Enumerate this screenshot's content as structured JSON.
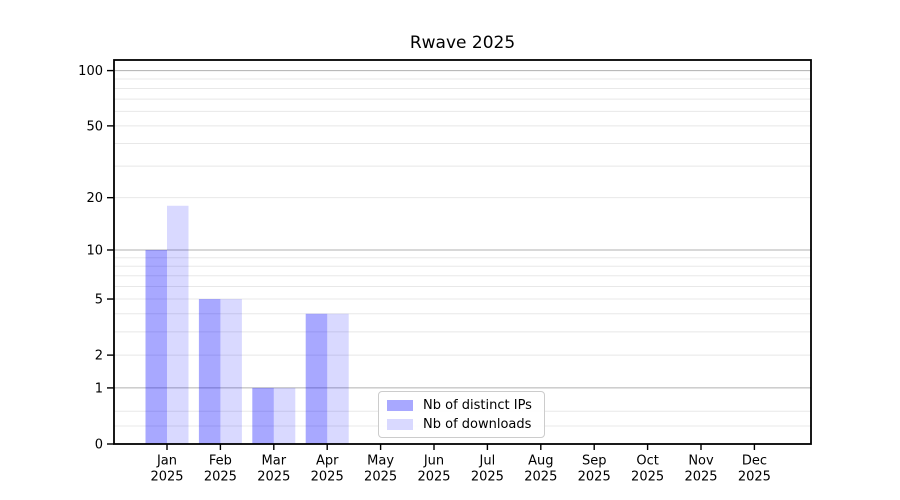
{
  "chart_data": {
    "type": "bar",
    "title": "Rwave 2025",
    "scale": "log1p (symlog-like: y position proportional to log10(1+value))",
    "categories": [
      "Jan 2025",
      "Feb 2025",
      "Mar 2025",
      "Apr 2025",
      "May 2025",
      "Jun 2025",
      "Jul 2025",
      "Aug 2025",
      "Sep 2025",
      "Oct 2025",
      "Nov 2025",
      "Dec 2025"
    ],
    "x_tick_months": [
      "Jan",
      "Feb",
      "Mar",
      "Apr",
      "May",
      "Jun",
      "Jul",
      "Aug",
      "Sep",
      "Oct",
      "Nov",
      "Dec"
    ],
    "x_tick_year": "2025",
    "series": [
      {
        "name": "Nb of distinct IPs",
        "values": [
          10,
          5,
          1,
          4,
          0,
          0,
          0,
          0,
          0,
          0,
          0,
          0
        ],
        "fill": "#0000ff",
        "fill_opacity": 0.34,
        "legend_color": "#a8a8ff"
      },
      {
        "name": "Nb of downloads",
        "values": [
          18,
          5,
          1,
          4,
          0,
          0,
          0,
          0,
          0,
          0,
          0,
          0
        ],
        "fill": "#0000ff",
        "fill_opacity": 0.15,
        "legend_color": "#d9d9ff"
      }
    ],
    "yticks": [
      0,
      1,
      2,
      5,
      10,
      20,
      50,
      100
    ],
    "ylim": [
      0,
      114
    ],
    "xlabel": "",
    "ylabel": "",
    "grid": {
      "on": true,
      "major_values": [
        1,
        10,
        100
      ],
      "minor_values": [
        0.25,
        0.5,
        2,
        3,
        4,
        5,
        6,
        7,
        8,
        9,
        20,
        30,
        40,
        50,
        60,
        70,
        80,
        90
      ],
      "major_color": "#b0b0b0",
      "minor_color": "#e8e8e8"
    },
    "legend_position": "inside plot, lower center-left"
  },
  "colors": {
    "axis_spine": "#000000",
    "tick_text": "#000000",
    "legend_border": "#cccccc",
    "background": "#ffffff"
  }
}
